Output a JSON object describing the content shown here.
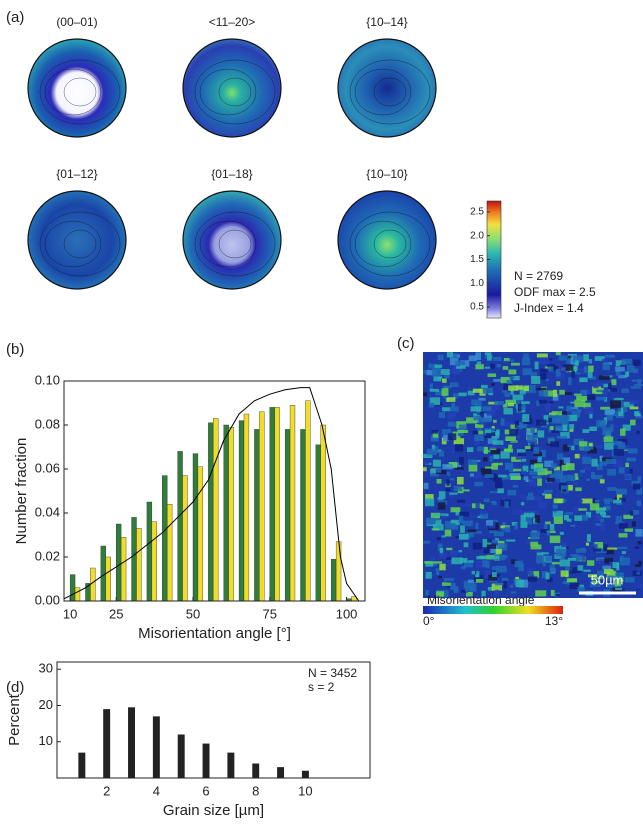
{
  "chart_data": [
    {
      "type": "pole-figures",
      "panel": "(a)",
      "titles": [
        "(00–01)",
        "<11–20>",
        "{10–14}",
        "{01–12}",
        "{01–18}",
        "{10–10}"
      ],
      "ylim": [
        0.27,
        2.73
      ],
      "yticks": [
        0.5,
        {
          "value": 1.0,
          "label": "1.0"
        },
        1.5,
        {
          "value": 2.0,
          "label": "2.0"
        },
        2.5
      ],
      "annotations": [
        "N = 2769",
        "ODF max = 2.5",
        "J-Index = 1.4"
      ]
    },
    {
      "type": "bar",
      "panel": "(b)",
      "xlabel": "Misorientation angle [°]",
      "ylabel": "Number fraction",
      "x": [
        10,
        15,
        20,
        25,
        30,
        35,
        40,
        45,
        50,
        55,
        60,
        65,
        70,
        75,
        80,
        85,
        90,
        95,
        100
      ],
      "series": [
        {
          "color": "#2e7d3a",
          "values": [
            0.012,
            0.008,
            0.025,
            0.035,
            0.038,
            0.045,
            0.057,
            0.068,
            0.067,
            0.081,
            0.08,
            0.082,
            0.078,
            0.088,
            0.078,
            0.078,
            0.071,
            0.019,
            0.001
          ]
        },
        {
          "color": "#f2dc2a",
          "values": [
            0.006,
            0.015,
            0.02,
            0.029,
            0.033,
            0.036,
            0.044,
            0.057,
            0.061,
            0.083,
            0.079,
            0.085,
            0.086,
            0.088,
            0.089,
            0.091,
            0.08,
            0.027,
            0.002
          ]
        },
        {
          "type": "line",
          "color": "#000000",
          "x": [
            8,
            15,
            20,
            30,
            40,
            50,
            55,
            60,
            65,
            70,
            75,
            80,
            85,
            88,
            92,
            95,
            98,
            100,
            104
          ],
          "values": [
            0.001,
            0.006,
            0.011,
            0.02,
            0.031,
            0.045,
            0.055,
            0.073,
            0.085,
            0.091,
            0.094,
            0.096,
            0.097,
            0.097,
            0.08,
            0.06,
            0.02,
            0.008,
            0
          ]
        }
      ],
      "xlim": [
        8,
        106
      ],
      "ylim": [
        0,
        0.1
      ],
      "xticks": [
        10,
        25,
        50,
        75,
        100
      ],
      "yticks": [
        {
          "value": 0,
          "label": "0.00"
        },
        {
          "value": 0.02,
          "label": "0.02"
        },
        {
          "value": 0.04,
          "label": "0.04"
        },
        {
          "value": 0.06,
          "label": "0.06"
        },
        {
          "value": 0.08,
          "label": "0.08"
        },
        {
          "value": 0.1,
          "label": "0.10"
        }
      ]
    },
    {
      "type": "map",
      "panel": "(c)",
      "colorbar_label": "Misorientation angle",
      "colorbar_ticks": [
        "0°",
        "13°"
      ],
      "scale_bar": "50µm"
    },
    {
      "type": "bar",
      "panel": "(d)",
      "xlabel": "Grain size [µm]",
      "ylabel": "Percent",
      "x": [
        1,
        2,
        3,
        4,
        5,
        6,
        7,
        8,
        9,
        10
      ],
      "series": [
        {
          "color": "#222222",
          "values": [
            7,
            19,
            19.5,
            17,
            12,
            9.5,
            7,
            4,
            3,
            2
          ]
        }
      ],
      "xlim": [
        0,
        12.6
      ],
      "ylim": [
        0,
        32
      ],
      "xticks": [
        2,
        4,
        6,
        8,
        10
      ],
      "yticks": [
        10,
        20,
        30
      ],
      "annotations": [
        "N = 3452",
        "s = 2"
      ]
    }
  ]
}
